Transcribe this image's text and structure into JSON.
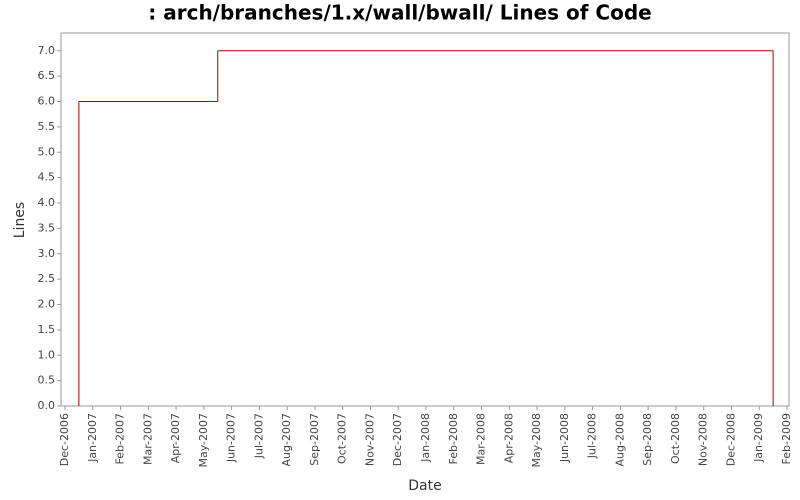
{
  "chart_data": {
    "type": "step-line",
    "title": ": arch/branches/1.x/wall/bwall/ Lines of Code",
    "x_label": "Date",
    "y_label": "Lines",
    "x": [
      "2006-12",
      "2007-05",
      "2009-01"
    ],
    "series": [
      {
        "name": "Lines",
        "color": "#b00000",
        "values": [
          6,
          7,
          0
        ]
      }
    ],
    "xlim": [
      "2006-12",
      "2009-02"
    ],
    "xticks": [
      {
        "value": "2006-12",
        "label": "Dec-2006"
      },
      {
        "value": "2007-01",
        "label": "Jan-2007"
      },
      {
        "value": "2007-02",
        "label": "Feb-2007"
      },
      {
        "value": "2007-03",
        "label": "Mar-2007"
      },
      {
        "value": "2007-04",
        "label": "Apr-2007"
      },
      {
        "value": "2007-05",
        "label": "May-2007"
      },
      {
        "value": "2007-06",
        "label": "Jun-2007"
      },
      {
        "value": "2007-07",
        "label": "Jul-2007"
      },
      {
        "value": "2007-08",
        "label": "Aug-2007"
      },
      {
        "value": "2007-09",
        "label": "Sep-2007"
      },
      {
        "value": "2007-10",
        "label": "Oct-2007"
      },
      {
        "value": "2007-11",
        "label": "Nov-2007"
      },
      {
        "value": "2007-12",
        "label": "Dec-2007"
      },
      {
        "value": "2008-01",
        "label": "Jan-2008"
      },
      {
        "value": "2008-02",
        "label": "Feb-2008"
      },
      {
        "value": "2008-03",
        "label": "Mar-2008"
      },
      {
        "value": "2008-04",
        "label": "Apr-2008"
      },
      {
        "value": "2008-05",
        "label": "May-2008"
      },
      {
        "value": "2008-06",
        "label": "Jun-2008"
      },
      {
        "value": "2008-07",
        "label": "Jul-2008"
      },
      {
        "value": "2008-08",
        "label": "Aug-2008"
      },
      {
        "value": "2008-09",
        "label": "Sep-2008"
      },
      {
        "value": "2008-10",
        "label": "Oct-2008"
      },
      {
        "value": "2008-11",
        "label": "Nov-2008"
      },
      {
        "value": "2008-12",
        "label": "Dec-2008"
      },
      {
        "value": "2009-01",
        "label": "Jan-2009"
      },
      {
        "value": "2009-02",
        "label": "Feb-2009"
      }
    ],
    "ylim": [
      0,
      7.35
    ],
    "yticks": [
      {
        "value": 0,
        "label": "0.0"
      },
      {
        "value": 0.5,
        "label": "0.5"
      },
      {
        "value": 1,
        "label": "1.0"
      },
      {
        "value": 1.5,
        "label": "1.5"
      },
      {
        "value": 2,
        "label": "2.0"
      },
      {
        "value": 2.5,
        "label": "2.5"
      },
      {
        "value": 3,
        "label": "3.0"
      },
      {
        "value": 3.5,
        "label": "3.5"
      },
      {
        "value": 4,
        "label": "4.0"
      },
      {
        "value": 4.5,
        "label": "4.5"
      },
      {
        "value": 5,
        "label": "5.0"
      },
      {
        "value": 5.5,
        "label": "5.5"
      },
      {
        "value": 6,
        "label": "6.0"
      },
      {
        "value": 6.5,
        "label": "6.5"
      },
      {
        "value": 7,
        "label": "7.0"
      }
    ],
    "grid": false
  }
}
